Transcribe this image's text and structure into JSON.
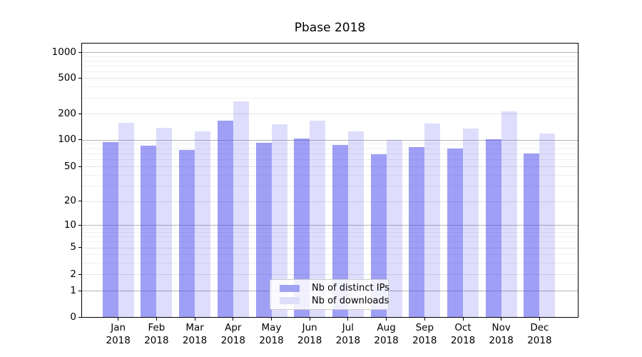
{
  "chart_data": {
    "type": "bar",
    "title": "Pbase 2018",
    "categories": [
      "Jan",
      "Feb",
      "Mar",
      "Apr",
      "May",
      "Jun",
      "Jul",
      "Aug",
      "Sep",
      "Oct",
      "Nov",
      "Dec"
    ],
    "category_year": "2018",
    "series": [
      {
        "name": "Nb of distinct IPs",
        "values": [
          93,
          85,
          77,
          166,
          92,
          103,
          87,
          69,
          83,
          80,
          100,
          70
        ],
        "bar_color": "rgba(70,70,238,0.52)",
        "legend_color": "#a2a2f4"
      },
      {
        "name": "Nb of downloads",
        "values": [
          156,
          137,
          125,
          272,
          150,
          166,
          125,
          99,
          152,
          133,
          210,
          117
        ],
        "bar_color": "rgba(70,70,238,0.18)",
        "legend_color": "#dedefb"
      }
    ],
    "yscale": "symlog",
    "yticks": [
      0,
      1,
      2,
      5,
      10,
      20,
      50,
      100,
      200,
      500,
      1000
    ],
    "ylim": [
      0,
      1400
    ],
    "grid": "both",
    "legend_position": "lower center",
    "xlabel": "",
    "ylabel": ""
  },
  "colors": {
    "background": "#ffffff",
    "grid_major": "#b4b4b4",
    "grid_mid": "#e3e3e3",
    "grid_minor": "#f0f0f0",
    "spine": "#000000",
    "text": "#000000",
    "legend_border": "#cccccc"
  }
}
